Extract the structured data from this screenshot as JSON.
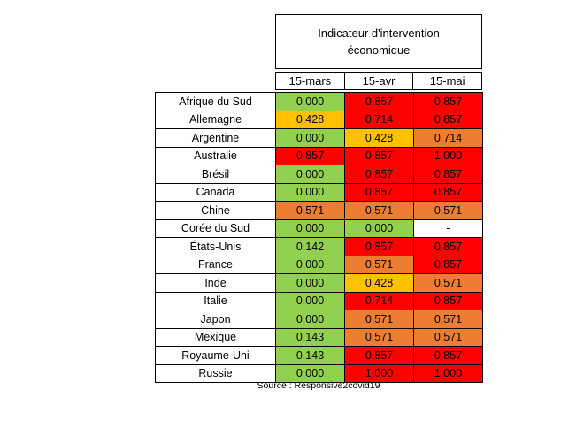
{
  "header": {
    "title": "Indicateur d'intervention économique"
  },
  "dates": [
    "15-mars",
    "15-avr",
    "15-mai"
  ],
  "colors": {
    "green": "#92d050",
    "yellow": "#ffc000",
    "orange": "#ed7d31",
    "red": "#ff0000",
    "white": "#ffffff"
  },
  "rows": [
    {
      "country": "Afrique du Sud",
      "values": [
        "0,000",
        "0,857",
        "0,857"
      ],
      "colors": [
        "g",
        "r",
        "r"
      ]
    },
    {
      "country": "Allemagne",
      "values": [
        "0,428",
        "0,714",
        "0,857"
      ],
      "colors": [
        "y",
        "r",
        "r"
      ]
    },
    {
      "country": "Argentine",
      "values": [
        "0,000",
        "0,428",
        "0,714"
      ],
      "colors": [
        "g",
        "y",
        "o"
      ]
    },
    {
      "country": "Australie",
      "values": [
        "0,857",
        "0,857",
        "1,000"
      ],
      "colors": [
        "r",
        "r",
        "r"
      ]
    },
    {
      "country": "Brésil",
      "values": [
        "0,000",
        "0,857",
        "0,857"
      ],
      "colors": [
        "g",
        "r",
        "r"
      ]
    },
    {
      "country": "Canada",
      "values": [
        "0,000",
        "0,857",
        "0,857"
      ],
      "colors": [
        "g",
        "r",
        "r"
      ]
    },
    {
      "country": "Chine",
      "values": [
        "0,571",
        "0,571",
        "0,571"
      ],
      "colors": [
        "o",
        "o",
        "o"
      ]
    },
    {
      "country": "Corée du Sud",
      "values": [
        "0,000",
        "0,000",
        "-"
      ],
      "colors": [
        "g",
        "g",
        "w"
      ]
    },
    {
      "country": "États-Unis",
      "values": [
        "0,142",
        "0,857",
        "0,857"
      ],
      "colors": [
        "g",
        "r",
        "r"
      ]
    },
    {
      "country": "France",
      "values": [
        "0,000",
        "0,571",
        "0,857"
      ],
      "colors": [
        "g",
        "o",
        "r"
      ]
    },
    {
      "country": "Inde",
      "values": [
        "0,000",
        "0,428",
        "0,571"
      ],
      "colors": [
        "g",
        "y",
        "o"
      ]
    },
    {
      "country": "Italie",
      "values": [
        "0,000",
        "0,714",
        "0,857"
      ],
      "colors": [
        "g",
        "r",
        "r"
      ]
    },
    {
      "country": "Japon",
      "values": [
        "0,000",
        "0,571",
        "0,571"
      ],
      "colors": [
        "g",
        "o",
        "o"
      ]
    },
    {
      "country": "Mexique",
      "values": [
        "0,143",
        "0,571",
        "0,571"
      ],
      "colors": [
        "g",
        "o",
        "o"
      ]
    },
    {
      "country": "Royaume-Uni",
      "values": [
        "0,143",
        "0,857",
        "0,857"
      ],
      "colors": [
        "g",
        "r",
        "r"
      ]
    },
    {
      "country": "Russie",
      "values": [
        "0,000",
        "1,000",
        "1,000"
      ],
      "colors": [
        "g",
        "r",
        "r"
      ]
    }
  ],
  "source": "Source : Responsive2covid19"
}
